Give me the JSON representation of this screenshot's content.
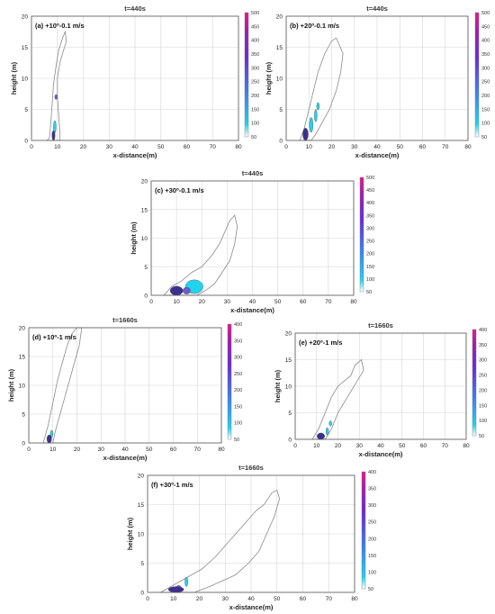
{
  "figure": {
    "axis_x_label": "x-distance(m)",
    "axis_y_label": "height (m)"
  },
  "chart_data": [
    {
      "type": "contour",
      "title": "t=440s",
      "annotation": "(a) +10º-0.1 m/s",
      "xlabel": "x-distance(m)",
      "ylabel": "height (m)",
      "xlim": [
        0,
        80
      ],
      "ylim": [
        0,
        20
      ],
      "x_ticks": [
        0,
        10,
        20,
        30,
        40,
        50,
        60,
        70,
        80
      ],
      "y_ticks": [
        0,
        5,
        10,
        15,
        20
      ],
      "colorbar": {
        "min": 50,
        "max": 500,
        "ticks": [
          50,
          100,
          150,
          200,
          250,
          300,
          350,
          400,
          450,
          500
        ]
      },
      "outline": [
        [
          6,
          0
        ],
        [
          7,
          0.5
        ],
        [
          7.5,
          3
        ],
        [
          8,
          6
        ],
        [
          8.5,
          9
        ],
        [
          9.5,
          12
        ],
        [
          10.5,
          14.5
        ],
        [
          12,
          16.5
        ],
        [
          13,
          17.5
        ],
        [
          13.5,
          16
        ],
        [
          12,
          14
        ],
        [
          11,
          12.5
        ],
        [
          10,
          10
        ],
        [
          10,
          7
        ],
        [
          10.5,
          4
        ],
        [
          11,
          1.5
        ],
        [
          11,
          0
        ]
      ],
      "blobs": [
        {
          "cx": 8.5,
          "cy": 0.8,
          "rx": 0.6,
          "ry": 0.8,
          "level": "high"
        },
        {
          "cx": 9.0,
          "cy": 2.2,
          "rx": 0.3,
          "ry": 1.0,
          "level": "low"
        },
        {
          "cx": 9.5,
          "cy": 7.0,
          "rx": 0.3,
          "ry": 0.4,
          "level": "mid"
        }
      ]
    },
    {
      "type": "contour",
      "title": "t=440s",
      "annotation": "(b) +20º-0.1 m/s",
      "xlabel": "x-distance(m)",
      "ylabel": "height (m)",
      "xlim": [
        0,
        80
      ],
      "ylim": [
        0,
        20
      ],
      "x_ticks": [
        0,
        10,
        20,
        30,
        40,
        50,
        60,
        70,
        80
      ],
      "y_ticks": [
        0,
        5,
        10,
        15,
        20
      ],
      "colorbar": {
        "min": 50,
        "max": 500,
        "ticks": [
          50,
          100,
          150,
          200,
          250,
          300,
          350,
          400,
          450,
          500
        ]
      },
      "outline": [
        [
          6,
          0
        ],
        [
          8,
          2
        ],
        [
          10,
          5
        ],
        [
          12,
          8
        ],
        [
          14,
          11
        ],
        [
          17,
          14
        ],
        [
          20,
          16
        ],
        [
          22,
          16.5
        ],
        [
          25,
          14
        ],
        [
          24,
          11
        ],
        [
          22,
          8
        ],
        [
          19,
          5
        ],
        [
          16,
          3
        ],
        [
          13,
          1
        ],
        [
          11,
          0
        ]
      ],
      "blobs": [
        {
          "cx": 8.5,
          "cy": 1.0,
          "rx": 1.2,
          "ry": 1.0,
          "level": "high"
        },
        {
          "cx": 11.0,
          "cy": 2.5,
          "rx": 0.8,
          "ry": 1.2,
          "level": "low"
        },
        {
          "cx": 13.0,
          "cy": 4.0,
          "rx": 0.6,
          "ry": 1.0,
          "level": "low"
        },
        {
          "cx": 14.0,
          "cy": 5.5,
          "rx": 0.5,
          "ry": 0.6,
          "level": "low"
        }
      ]
    },
    {
      "type": "contour",
      "title": "t=440s",
      "annotation": "(c) +30º-0.1 m/s",
      "xlabel": "x-distance(m)",
      "ylabel": "height (m)",
      "xlim": [
        0,
        80
      ],
      "ylim": [
        0,
        20
      ],
      "x_ticks": [
        0,
        10,
        20,
        30,
        40,
        50,
        60,
        70,
        80
      ],
      "y_ticks": [
        0,
        5,
        10,
        15,
        20
      ],
      "colorbar": {
        "min": 50,
        "max": 500,
        "ticks": [
          50,
          100,
          150,
          200,
          250,
          300,
          350,
          400,
          450,
          500
        ]
      },
      "outline": [
        [
          5,
          0
        ],
        [
          8,
          1.5
        ],
        [
          12,
          2.5
        ],
        [
          16,
          4
        ],
        [
          20,
          5
        ],
        [
          24,
          7
        ],
        [
          27,
          9
        ],
        [
          29,
          11
        ],
        [
          31,
          13
        ],
        [
          33,
          14
        ],
        [
          34,
          12
        ],
        [
          33,
          9
        ],
        [
          31,
          6
        ],
        [
          28,
          4
        ],
        [
          25,
          2
        ],
        [
          22,
          1
        ],
        [
          18,
          0
        ]
      ],
      "blobs": [
        {
          "cx": 10.0,
          "cy": 0.8,
          "rx": 2.5,
          "ry": 0.8,
          "level": "high"
        },
        {
          "cx": 17.0,
          "cy": 1.5,
          "rx": 3.5,
          "ry": 1.2,
          "level": "low"
        },
        {
          "cx": 14.0,
          "cy": 0.8,
          "rx": 1.5,
          "ry": 0.6,
          "level": "mid"
        }
      ]
    },
    {
      "type": "contour",
      "title": "t=1660s",
      "annotation": "(d) +10º-1 m/s",
      "xlabel": "x-distance(m)",
      "ylabel": "height (m)",
      "xlim": [
        0,
        80
      ],
      "ylim": [
        0,
        20
      ],
      "x_ticks": [
        0,
        10,
        20,
        30,
        40,
        50,
        60,
        70,
        80
      ],
      "y_ticks": [
        0,
        5,
        10,
        15,
        20
      ],
      "colorbar": {
        "min": 50,
        "max": 400,
        "ticks": [
          50,
          100,
          150,
          200,
          250,
          300,
          350,
          400
        ]
      },
      "outline": [
        [
          6,
          0
        ],
        [
          8,
          3
        ],
        [
          10,
          7
        ],
        [
          12,
          11
        ],
        [
          14,
          14
        ],
        [
          16,
          17
        ],
        [
          18,
          19
        ],
        [
          20,
          20
        ],
        [
          22,
          20
        ],
        [
          21,
          17
        ],
        [
          19,
          14
        ],
        [
          17,
          11
        ],
        [
          15,
          8
        ],
        [
          13,
          5
        ],
        [
          11,
          2
        ],
        [
          10,
          0
        ]
      ],
      "blobs": [
        {
          "cx": 8.5,
          "cy": 0.7,
          "rx": 1.0,
          "ry": 0.7,
          "level": "high"
        },
        {
          "cx": 9.5,
          "cy": 1.6,
          "rx": 0.5,
          "ry": 0.6,
          "level": "low"
        }
      ]
    },
    {
      "type": "contour",
      "title": "t=1660s",
      "annotation": "(e) +20º-1 m/s",
      "xlabel": "x-distance(m)",
      "ylabel": "height (m)",
      "xlim": [
        0,
        80
      ],
      "ylim": [
        0,
        20
      ],
      "x_ticks": [
        0,
        10,
        20,
        30,
        40,
        50,
        60,
        70,
        80
      ],
      "y_ticks": [
        0,
        5,
        10,
        15,
        20
      ],
      "colorbar": {
        "min": 50,
        "max": 400,
        "ticks": [
          50,
          100,
          150,
          200,
          250,
          300,
          350,
          400
        ]
      },
      "outline": [
        [
          8,
          0
        ],
        [
          11,
          2
        ],
        [
          14,
          5
        ],
        [
          17,
          8
        ],
        [
          20,
          10
        ],
        [
          23,
          11
        ],
        [
          26,
          12
        ],
        [
          28,
          14
        ],
        [
          31,
          15
        ],
        [
          32,
          13
        ],
        [
          29,
          11
        ],
        [
          26,
          9
        ],
        [
          23,
          7
        ],
        [
          20,
          5
        ],
        [
          17,
          2
        ],
        [
          14,
          0
        ]
      ],
      "blobs": [
        {
          "cx": 12.0,
          "cy": 0.6,
          "rx": 1.8,
          "ry": 0.6,
          "level": "high"
        },
        {
          "cx": 15.0,
          "cy": 1.5,
          "rx": 0.6,
          "ry": 0.7,
          "level": "low"
        },
        {
          "cx": 16.5,
          "cy": 3.0,
          "rx": 0.4,
          "ry": 0.5,
          "level": "low"
        }
      ]
    },
    {
      "type": "contour",
      "title": "t=1660s",
      "annotation": "(f) +30º-1 m/s",
      "xlabel": "x-distance(m)",
      "ylabel": "height (m)",
      "xlim": [
        0,
        80
      ],
      "ylim": [
        0,
        20
      ],
      "x_ticks": [
        0,
        10,
        20,
        30,
        40,
        50,
        60,
        70,
        80
      ],
      "y_ticks": [
        0,
        5,
        10,
        15,
        20
      ],
      "colorbar": {
        "min": 50,
        "max": 400,
        "ticks": [
          50,
          100,
          150,
          200,
          250,
          300,
          350,
          400
        ]
      },
      "outline": [
        [
          5,
          0
        ],
        [
          9,
          1
        ],
        [
          13,
          2
        ],
        [
          17,
          3
        ],
        [
          21,
          4
        ],
        [
          26,
          6
        ],
        [
          30,
          8
        ],
        [
          34,
          10
        ],
        [
          38,
          12
        ],
        [
          42,
          14
        ],
        [
          45,
          15
        ],
        [
          48,
          17
        ],
        [
          50,
          17.5
        ],
        [
          51,
          16
        ],
        [
          49,
          13
        ],
        [
          46,
          10
        ],
        [
          43,
          7
        ],
        [
          39,
          5
        ],
        [
          34,
          3
        ],
        [
          29,
          2
        ],
        [
          24,
          1
        ],
        [
          18,
          0
        ]
      ],
      "blobs": [
        {
          "cx": 11.0,
          "cy": 0.5,
          "rx": 3.0,
          "ry": 0.5,
          "level": "high"
        },
        {
          "cx": 15.0,
          "cy": 1.8,
          "rx": 0.6,
          "ry": 0.8,
          "level": "low"
        },
        {
          "cx": 12.0,
          "cy": 0.8,
          "rx": 1.0,
          "ry": 0.4,
          "level": "mid"
        }
      ]
    }
  ]
}
